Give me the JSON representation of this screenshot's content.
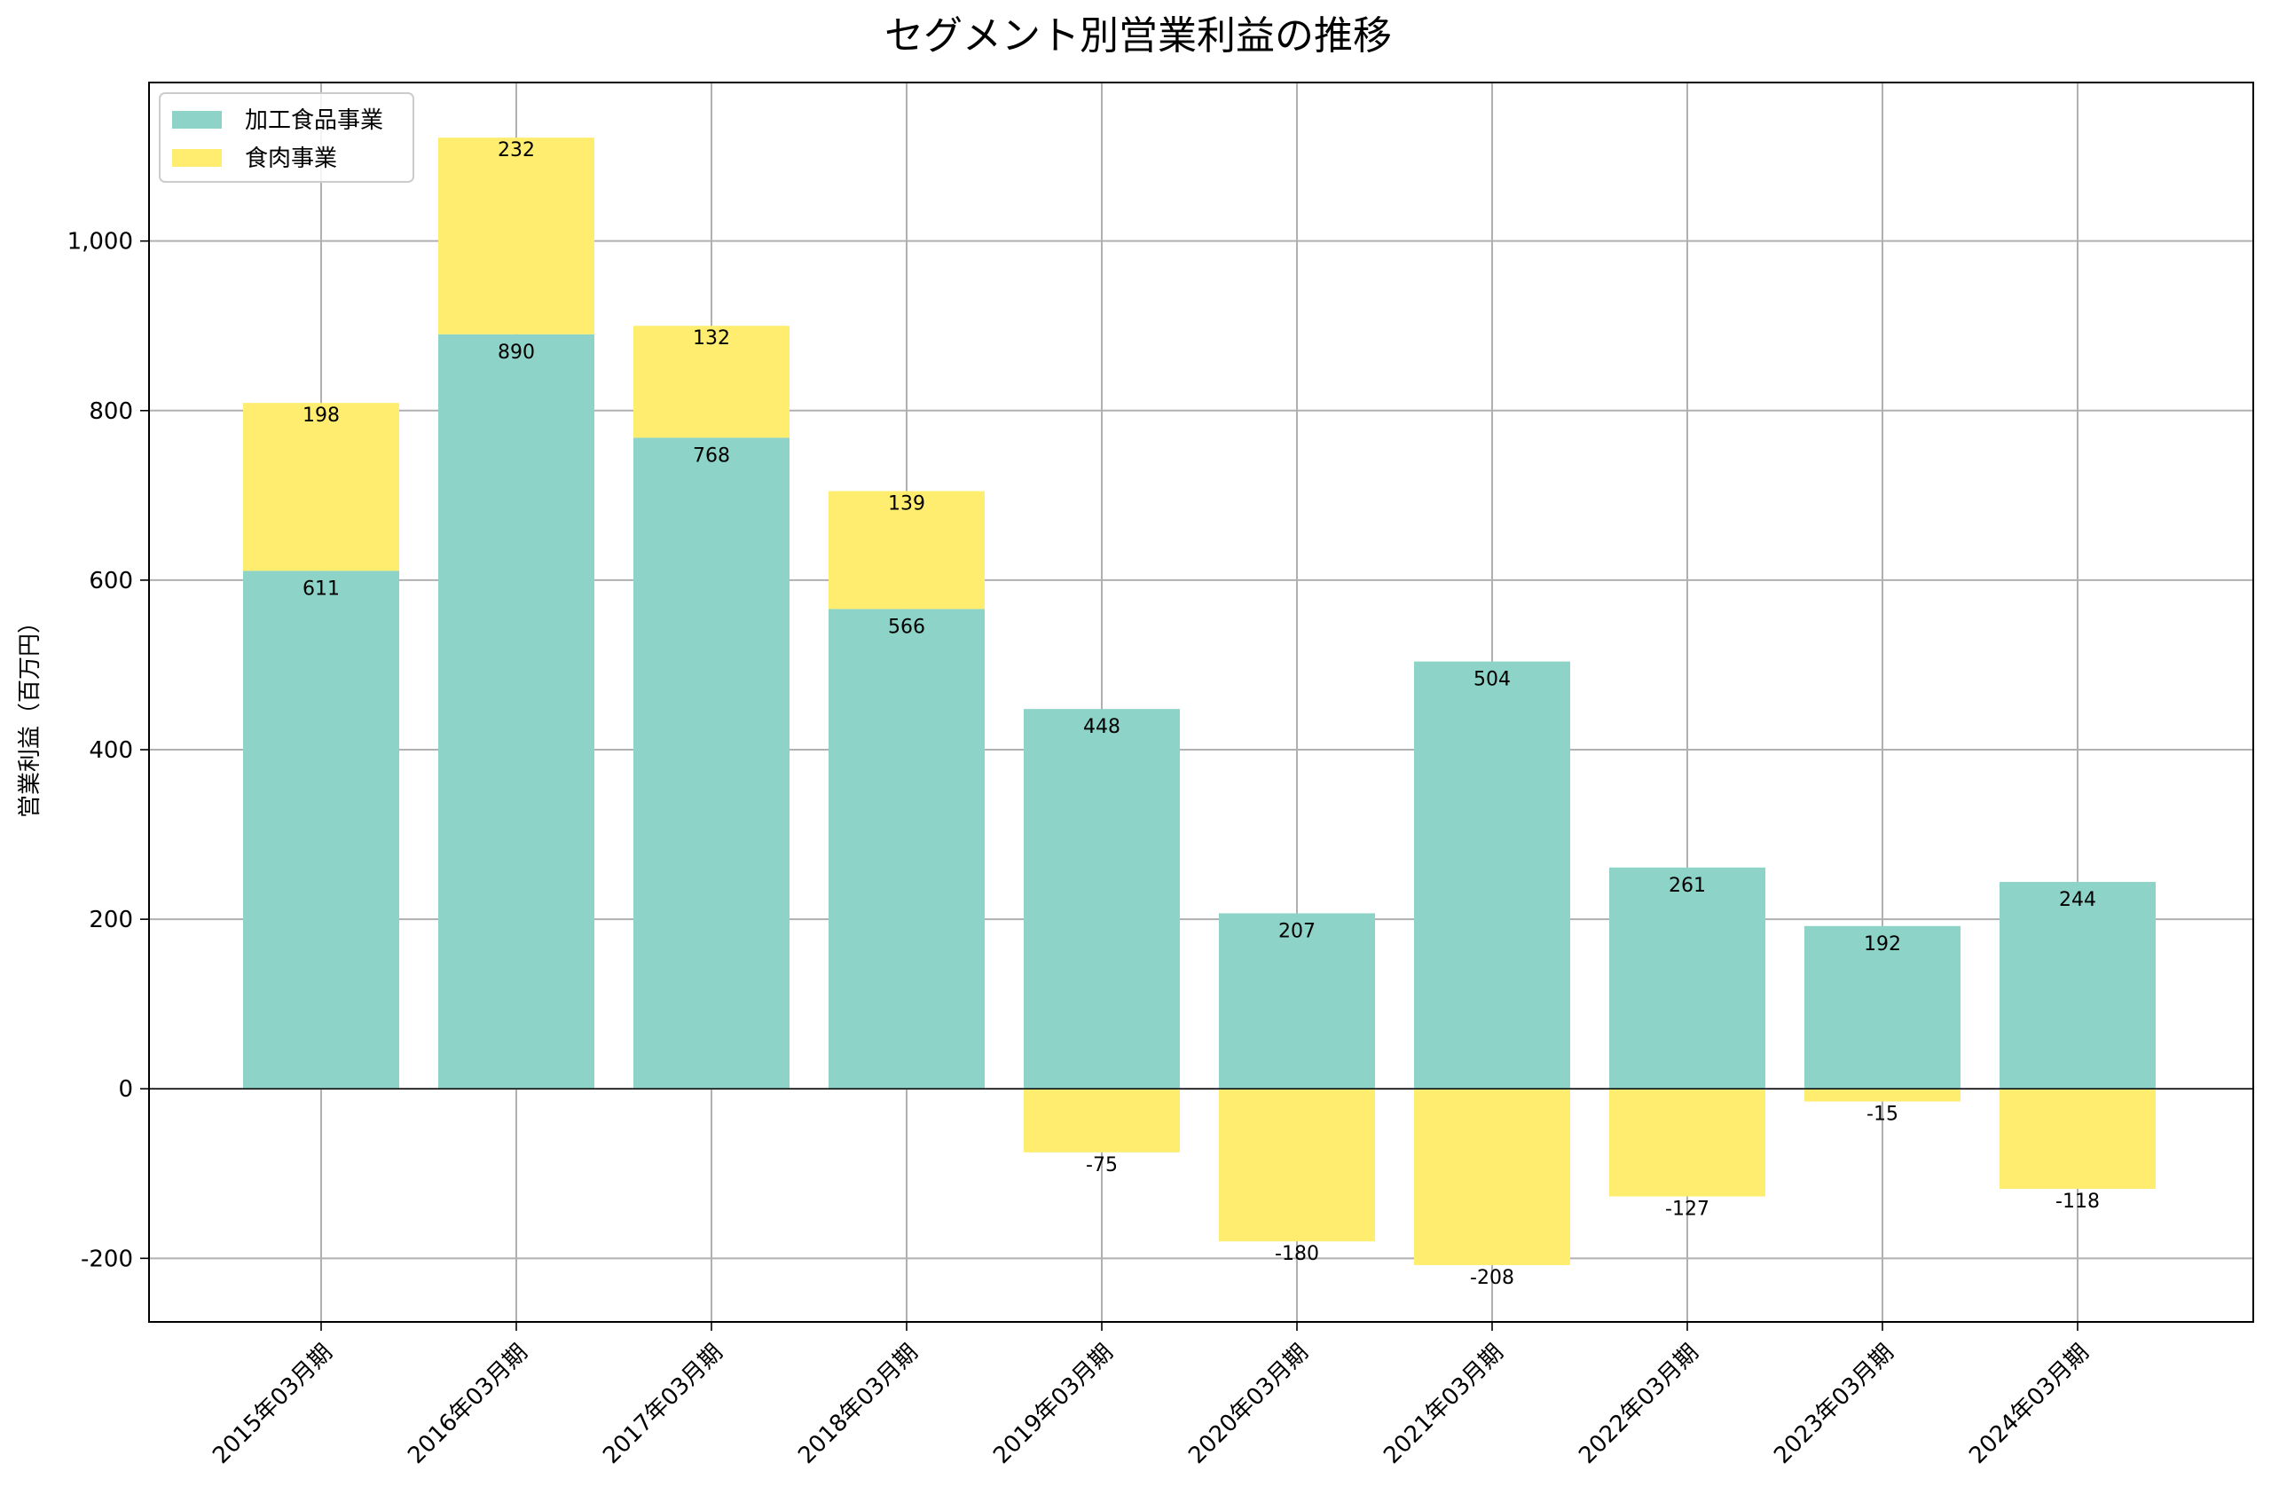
{
  "chart_data": {
    "type": "bar",
    "stacked": true,
    "title": "セグメント別営業利益の推移",
    "xlabel": "",
    "ylabel": "営業利益（百万円）",
    "ylim": [
      -275,
      1187
    ],
    "yticks": [
      -200,
      0,
      200,
      400,
      600,
      800,
      1000
    ],
    "ytick_labels": [
      "-200",
      "0",
      "200",
      "400",
      "600",
      "800",
      "1,000"
    ],
    "grid": true,
    "legend_position": "top-left",
    "categories": [
      "2015年03月期",
      "2016年03月期",
      "2017年03月期",
      "2018年03月期",
      "2019年03月期",
      "2020年03月期",
      "2021年03月期",
      "2022年03月期",
      "2023年03月期",
      "2024年03月期"
    ],
    "series": [
      {
        "name": "加工食品事業",
        "color": "#8dd3c7",
        "values": [
          611,
          890,
          768,
          566,
          448,
          207,
          504,
          261,
          192,
          244
        ]
      },
      {
        "name": "食肉事業",
        "color": "#ffed6f",
        "values": [
          198,
          232,
          132,
          139,
          -75,
          -180,
          -208,
          -127,
          -15,
          -118
        ]
      }
    ]
  }
}
